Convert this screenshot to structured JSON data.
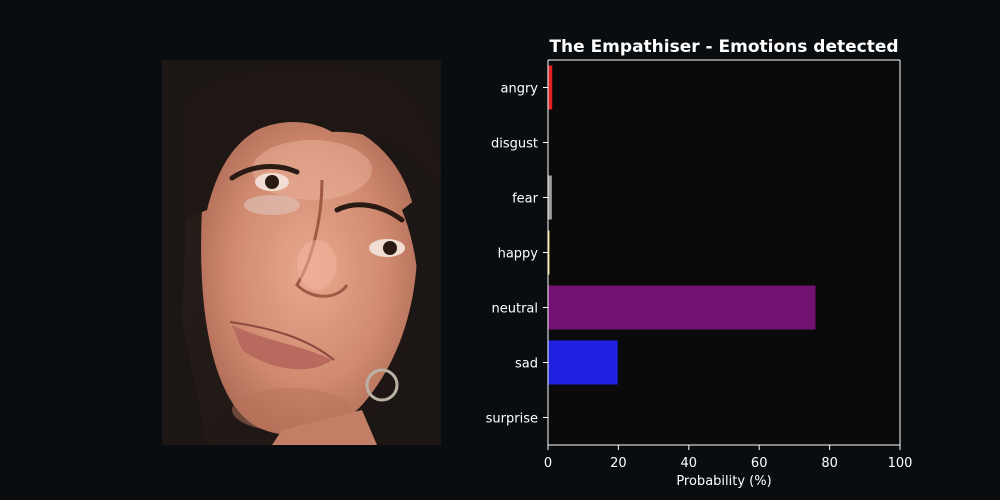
{
  "chart_data": {
    "type": "bar",
    "orientation": "horizontal",
    "title": "The Empathiser - Emotions detected",
    "xlabel": "Probability (%)",
    "ylabel": "",
    "xlim": [
      0,
      100
    ],
    "x_ticks": [
      "0",
      "20",
      "40",
      "60",
      "80",
      "100"
    ],
    "categories": [
      "angry",
      "disgust",
      "fear",
      "happy",
      "neutral",
      "sad",
      "surprise"
    ],
    "values": [
      1.2,
      0.05,
      1.1,
      0.4,
      76,
      19.8,
      0.05
    ],
    "colors": [
      "#e02020",
      "#ffffff",
      "#9a9a9a",
      "#f5e66e",
      "#731173",
      "#2020e0",
      "#ffffff"
    ],
    "grid": false,
    "legend": "none"
  },
  "photo": {
    "subject": "face photo of a person with dark hair and hoop earring"
  },
  "theme": {
    "background": "#0a0d10",
    "plot_background": "#0a0a0a",
    "foreground": "#ffffff"
  }
}
